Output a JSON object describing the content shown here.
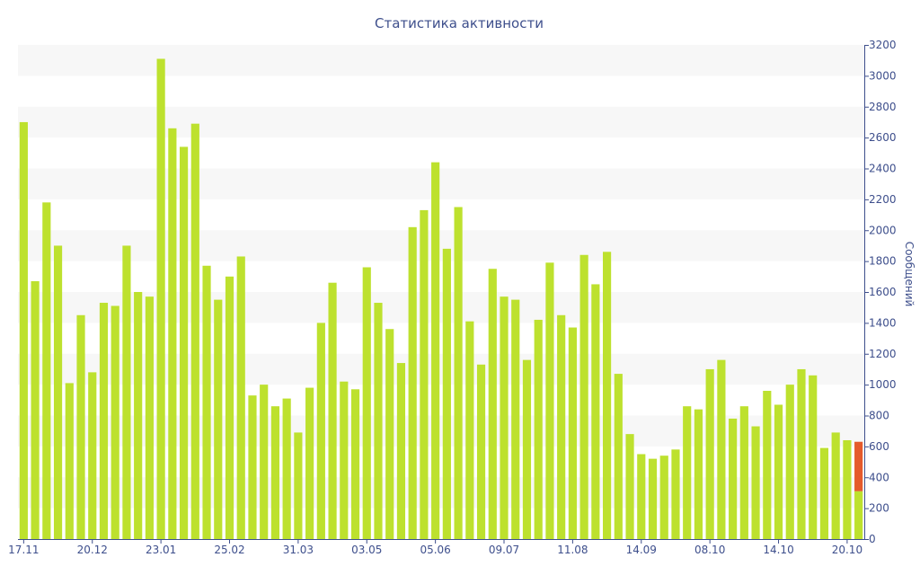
{
  "chart_data": {
    "type": "bar",
    "title": "Статистика активности",
    "ylabel": "Сообщений",
    "ylim": [
      0,
      3200
    ],
    "y_ticks": [
      0,
      200,
      400,
      600,
      800,
      1000,
      1200,
      1400,
      1600,
      1800,
      2000,
      2200,
      2400,
      2600,
      2800,
      3000,
      3200
    ],
    "x_tick_labels": [
      {
        "index": 0,
        "label": "17.11"
      },
      {
        "index": 6,
        "label": "20.12"
      },
      {
        "index": 12,
        "label": "23.01"
      },
      {
        "index": 18,
        "label": "25.02"
      },
      {
        "index": 24,
        "label": "31.03"
      },
      {
        "index": 30,
        "label": "03.05"
      },
      {
        "index": 36,
        "label": "05.06"
      },
      {
        "index": 42,
        "label": "09.07"
      },
      {
        "index": 48,
        "label": "11.08"
      },
      {
        "index": 54,
        "label": "14.09"
      },
      {
        "index": 60,
        "label": "08.10"
      },
      {
        "index": 66,
        "label": "14.10"
      },
      {
        "index": 72,
        "label": "20.10"
      }
    ],
    "values": [
      2700,
      1670,
      2180,
      1900,
      1010,
      1450,
      1080,
      1530,
      1510,
      1900,
      1600,
      1570,
      3110,
      2660,
      2540,
      2690,
      1770,
      1550,
      1700,
      1830,
      930,
      1000,
      860,
      910,
      690,
      980,
      1400,
      1660,
      1020,
      970,
      1760,
      1530,
      1360,
      1140,
      2020,
      2130,
      2440,
      1880,
      2150,
      1410,
      1130,
      1750,
      1570,
      1550,
      1160,
      1420,
      1790,
      1450,
      1370,
      1840,
      1650,
      1860,
      1070,
      680,
      550,
      520,
      540,
      580,
      860,
      840,
      1100,
      1160,
      780,
      860,
      730,
      960,
      870,
      1000,
      1100,
      1060,
      590,
      690,
      640,
      310
    ],
    "last_bar_extra": 320,
    "grid": true,
    "colors": {
      "bar": "#bde12e",
      "highlight": "#e55a2b",
      "band": "#f7f7f7",
      "axis": "#3e4f8c",
      "title": "#3e4f8c"
    }
  }
}
